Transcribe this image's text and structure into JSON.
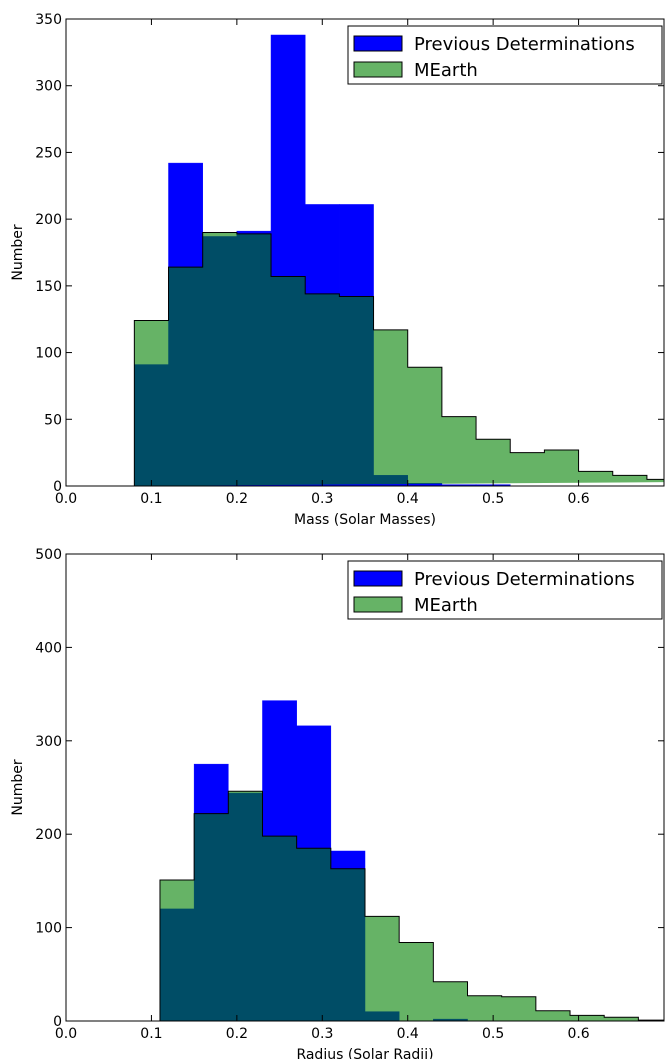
{
  "colors": {
    "previous": "#0000ff",
    "mearth": "#008000",
    "mearth_alpha": 0.6,
    "overlap": "#004d66"
  },
  "chart_data": [
    {
      "type": "bar",
      "subtype": "histogram",
      "xlabel": "Mass (Solar Masses)",
      "ylabel": "Number",
      "xlim": [
        0.0,
        0.7
      ],
      "ylim": [
        0,
        350
      ],
      "xticks": [
        "0.0",
        "0.1",
        "0.2",
        "0.3",
        "0.4",
        "0.5",
        "0.6"
      ],
      "yticks": [
        "0",
        "50",
        "100",
        "150",
        "200",
        "250",
        "300",
        "350"
      ],
      "legend_position": "top-right",
      "grid": false,
      "series": [
        {
          "name": "Previous Determinations",
          "bin_edges": [
            0.08,
            0.12,
            0.16,
            0.2,
            0.24,
            0.28,
            0.32,
            0.36,
            0.4,
            0.44,
            0.48,
            0.52
          ],
          "values": [
            91,
            242,
            187,
            191,
            338,
            211,
            211,
            8,
            2,
            1,
            1
          ]
        },
        {
          "name": "MEarth",
          "bin_edges": [
            0.08,
            0.12,
            0.16,
            0.2,
            0.24,
            0.28,
            0.32,
            0.36,
            0.4,
            0.44,
            0.48,
            0.52,
            0.56,
            0.6,
            0.64,
            0.68,
            0.72
          ],
          "values": [
            124,
            164,
            190,
            189,
            157,
            144,
            142,
            117,
            89,
            52,
            35,
            25,
            27,
            11,
            8,
            5,
            3
          ]
        }
      ]
    },
    {
      "type": "bar",
      "subtype": "histogram",
      "xlabel": "Radius (Solar Radii)",
      "ylabel": "Number",
      "xlim": [
        0.0,
        0.7
      ],
      "ylim": [
        0,
        500
      ],
      "xticks": [
        "0.0",
        "0.1",
        "0.2",
        "0.3",
        "0.4",
        "0.5",
        "0.6"
      ],
      "yticks": [
        "0",
        "100",
        "200",
        "300",
        "400",
        "500"
      ],
      "legend_position": "top-right",
      "grid": false,
      "series": [
        {
          "name": "Previous Determinations",
          "bin_edges": [
            0.11,
            0.15,
            0.19,
            0.23,
            0.27,
            0.31,
            0.35,
            0.39,
            0.43,
            0.47,
            0.51
          ],
          "values": [
            120,
            275,
            244,
            343,
            316,
            182,
            10,
            0,
            2,
            0
          ]
        },
        {
          "name": "MEarth",
          "bin_edges": [
            0.11,
            0.15,
            0.19,
            0.23,
            0.27,
            0.31,
            0.35,
            0.39,
            0.43,
            0.47,
            0.51,
            0.55,
            0.59,
            0.63,
            0.67,
            0.71
          ],
          "values": [
            151,
            222,
            246,
            198,
            185,
            163,
            112,
            84,
            42,
            27,
            26,
            11,
            6,
            4,
            1
          ]
        }
      ]
    }
  ]
}
